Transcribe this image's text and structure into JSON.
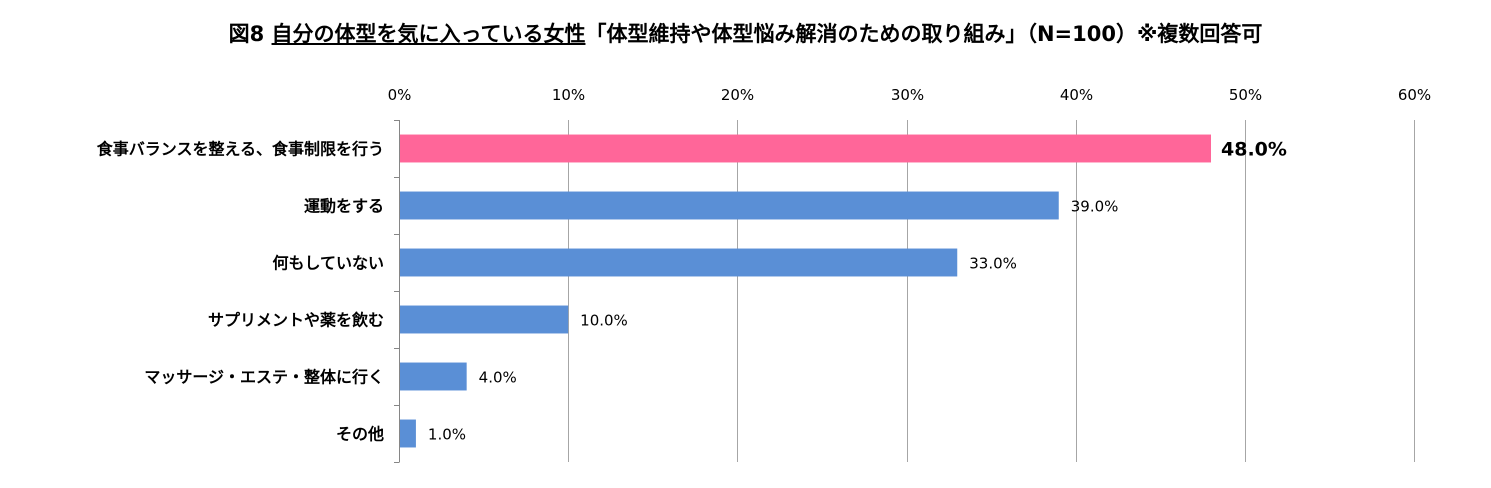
{
  "title": {
    "prefix": "図8 ",
    "underlined": "自分の体型を気に入っている女性",
    "suffix": "「体型維持や体型悩み解消のための取り組み」（N=100）※複数回答可"
  },
  "chart_data": {
    "type": "bar",
    "orientation": "horizontal",
    "categories": [
      "食事バランスを整える、食事制限を行う",
      "運動をする",
      "何もしていない",
      "サプリメントや薬を飲む",
      "マッサージ・エステ・整体に行く",
      "その他"
    ],
    "values": [
      48.0,
      39.0,
      33.0,
      10.0,
      4.0,
      1.0
    ],
    "value_labels": [
      "48.0%",
      "39.0%",
      "33.0%",
      "10.0%",
      "4.0%",
      "1.0%"
    ],
    "x_ticks": [
      "0%",
      "10%",
      "20%",
      "30%",
      "40%",
      "50%",
      "60%"
    ],
    "xlim": [
      0,
      60
    ],
    "x_axis_position": "top",
    "grid": true,
    "highlight_index": 0,
    "colors": {
      "highlight": "#ff6699",
      "default": "#5a8fd6",
      "grid": "#a6a6a6"
    }
  }
}
